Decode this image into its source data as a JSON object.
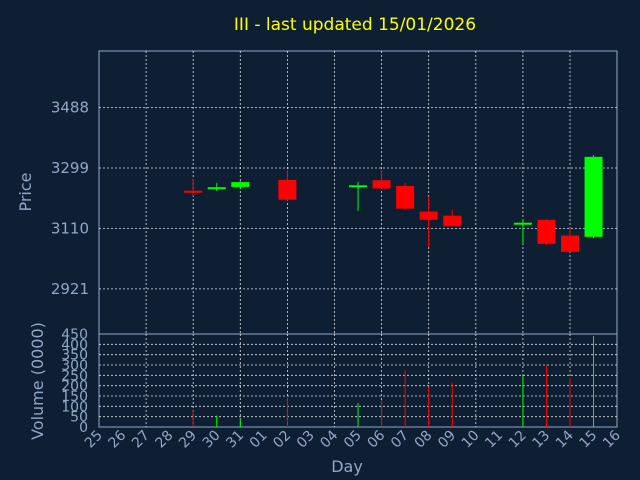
{
  "chart_data": {
    "type": "candlestick",
    "title": "III - last updated 15/01/2026",
    "xlabel": "Day",
    "price_ylabel": "Price",
    "volume_ylabel": "Volume (0000)",
    "x_ticks": [
      "25",
      "26",
      "27",
      "28",
      "29",
      "30",
      "31",
      "01",
      "02",
      "03",
      "04",
      "05",
      "06",
      "07",
      "08",
      "09",
      "10",
      "11",
      "12",
      "13",
      "14",
      "15",
      "16"
    ],
    "price_ticks": [
      2921,
      3110,
      3299,
      3488
    ],
    "price_ylim": [
      2780,
      3665
    ],
    "volume_ticks": [
      0,
      50,
      100,
      150,
      200,
      250,
      300,
      350,
      400,
      450
    ],
    "volume_ylim": [
      0,
      450
    ],
    "colors": {
      "up": "#00ff00",
      "down": "#ff0000",
      "neutral": "#00ff00"
    },
    "candles": [
      {
        "day": "29",
        "open": 3228,
        "high": 3265,
        "low": 3212,
        "close": 3225,
        "volume": 80
      },
      {
        "day": "30",
        "open": 3237,
        "high": 3252,
        "low": 3228,
        "close": 3239,
        "volume": 55
      },
      {
        "day": "31",
        "open": 3240,
        "high": 3258,
        "low": 3232,
        "close": 3255,
        "volume": 40
      },
      {
        "day": "02",
        "open": 3262,
        "high": 3292,
        "low": 3195,
        "close": 3200,
        "volume": 140
      },
      {
        "day": "05",
        "open": 3245,
        "high": 3255,
        "low": 3165,
        "close": 3244,
        "volume": 115
      },
      {
        "day": "06",
        "open": 3261,
        "high": 3294,
        "low": 3232,
        "close": 3235,
        "volume": 130
      },
      {
        "day": "07",
        "open": 3243,
        "high": 3252,
        "low": 3170,
        "close": 3172,
        "volume": 275
      },
      {
        "day": "08",
        "open": 3163,
        "high": 3210,
        "low": 3052,
        "close": 3137,
        "volume": 195
      },
      {
        "day": "09",
        "open": 3150,
        "high": 3168,
        "low": 3117,
        "close": 3117,
        "volume": 215
      },
      {
        "day": "12",
        "open": 3124,
        "high": 3138,
        "low": 3062,
        "close": 3128,
        "volume": 250
      },
      {
        "day": "13",
        "open": 3137,
        "high": 3140,
        "low": 3058,
        "close": 3062,
        "volume": 300
      },
      {
        "day": "14",
        "open": 3088,
        "high": 3111,
        "low": 3037,
        "close": 3037,
        "volume": 240
      },
      {
        "day": "15",
        "open": 3084,
        "high": 3340,
        "low": 3080,
        "close": 3334,
        "volume": 440
      }
    ]
  }
}
